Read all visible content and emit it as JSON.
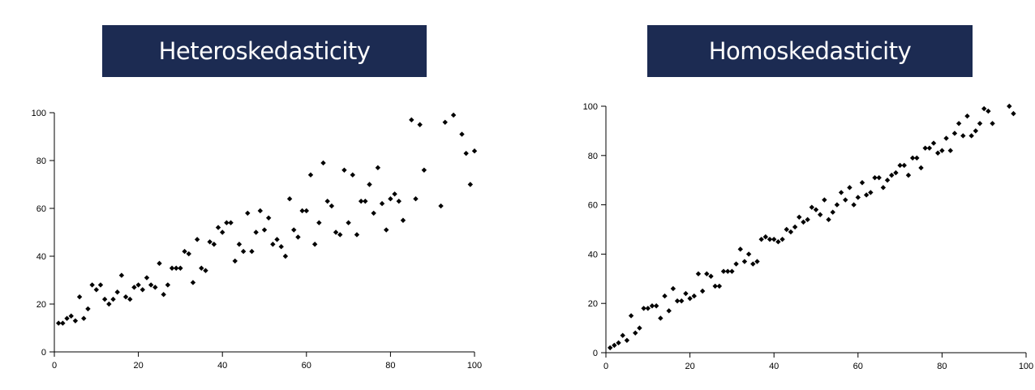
{
  "charts": {
    "left_title": "Heteroskedasticity",
    "right_title": "Homoskedasticity"
  },
  "chart_data": [
    {
      "type": "scatter",
      "title": "Heteroskedasticity",
      "xlim": [
        0,
        100
      ],
      "ylim": [
        0,
        100
      ],
      "xticks": [
        0,
        20,
        40,
        60,
        80,
        100
      ],
      "yticks": [
        0,
        20,
        40,
        60,
        80,
        100
      ],
      "grid": false,
      "marker_color": "#000000",
      "x": [
        1,
        2,
        3,
        4,
        5,
        6,
        7,
        8,
        9,
        10,
        11,
        12,
        13,
        14,
        15,
        16,
        17,
        18,
        19,
        20,
        21,
        22,
        23,
        24,
        25,
        26,
        27,
        28,
        29,
        30,
        31,
        32,
        33,
        34,
        35,
        36,
        37,
        38,
        39,
        40,
        41,
        42,
        43,
        44,
        45,
        46,
        47,
        48,
        49,
        50,
        51,
        52,
        53,
        54,
        55,
        56,
        57,
        58,
        59,
        60,
        61,
        62,
        63,
        64,
        65,
        66,
        67,
        68,
        69,
        70,
        71,
        72,
        73,
        74,
        75,
        76,
        77,
        78,
        79,
        80,
        81,
        82,
        83,
        85,
        86,
        87,
        88,
        92,
        93,
        95,
        97,
        98,
        99,
        100
      ],
      "y": [
        12,
        12,
        14,
        15,
        13,
        23,
        14,
        18,
        28,
        26,
        28,
        22,
        20,
        22,
        25,
        32,
        23,
        22,
        27,
        28,
        26,
        31,
        28,
        27,
        37,
        24,
        28,
        35,
        35,
        35,
        42,
        41,
        29,
        47,
        35,
        34,
        46,
        45,
        52,
        50,
        54,
        54,
        38,
        45,
        42,
        58,
        42,
        50,
        59,
        51,
        56,
        45,
        47,
        44,
        40,
        64,
        51,
        48,
        59,
        59,
        74,
        45,
        54,
        79,
        63,
        61,
        50,
        49,
        76,
        54,
        74,
        49,
        63,
        63,
        70,
        58,
        77,
        62,
        51,
        64,
        66,
        63,
        55,
        97,
        64,
        95,
        76,
        61,
        96,
        99,
        91,
        83,
        70,
        84
      ]
    },
    {
      "type": "scatter",
      "title": "Homoskedasticity",
      "xlim": [
        0,
        100
      ],
      "ylim": [
        0,
        100
      ],
      "xticks": [
        0,
        20,
        40,
        60,
        80,
        100
      ],
      "yticks": [
        0,
        20,
        40,
        60,
        80,
        100
      ],
      "grid": false,
      "marker_color": "#000000",
      "x": [
        1,
        2,
        3,
        4,
        5,
        6,
        7,
        8,
        9,
        10,
        11,
        12,
        13,
        14,
        15,
        16,
        17,
        18,
        19,
        20,
        21,
        22,
        23,
        24,
        25,
        26,
        27,
        28,
        29,
        30,
        31,
        32,
        33,
        34,
        35,
        36,
        37,
        38,
        39,
        40,
        41,
        42,
        43,
        44,
        45,
        46,
        47,
        48,
        49,
        50,
        51,
        52,
        53,
        54,
        55,
        56,
        57,
        58,
        59,
        60,
        61,
        62,
        63,
        64,
        65,
        66,
        67,
        68,
        69,
        70,
        71,
        72,
        73,
        74,
        75,
        76,
        77,
        78,
        79,
        80,
        81,
        82,
        83,
        84,
        85,
        86,
        87,
        88,
        89,
        90,
        91,
        92,
        96,
        97
      ],
      "y": [
        2,
        3,
        4,
        7,
        5,
        15,
        8,
        10,
        18,
        18,
        19,
        19,
        14,
        23,
        17,
        26,
        21,
        21,
        24,
        22,
        23,
        32,
        25,
        32,
        31,
        27,
        27,
        33,
        33,
        33,
        36,
        42,
        37,
        40,
        36,
        37,
        46,
        47,
        46,
        46,
        45,
        46,
        50,
        49,
        51,
        55,
        53,
        54,
        59,
        58,
        56,
        62,
        54,
        57,
        60,
        65,
        62,
        67,
        60,
        63,
        69,
        64,
        65,
        71,
        71,
        67,
        70,
        72,
        73,
        76,
        76,
        72,
        79,
        79,
        75,
        83,
        83,
        85,
        81,
        82,
        87,
        82,
        89,
        93,
        88,
        96,
        88,
        90,
        93,
        99,
        98,
        93,
        100,
        97
      ]
    }
  ]
}
